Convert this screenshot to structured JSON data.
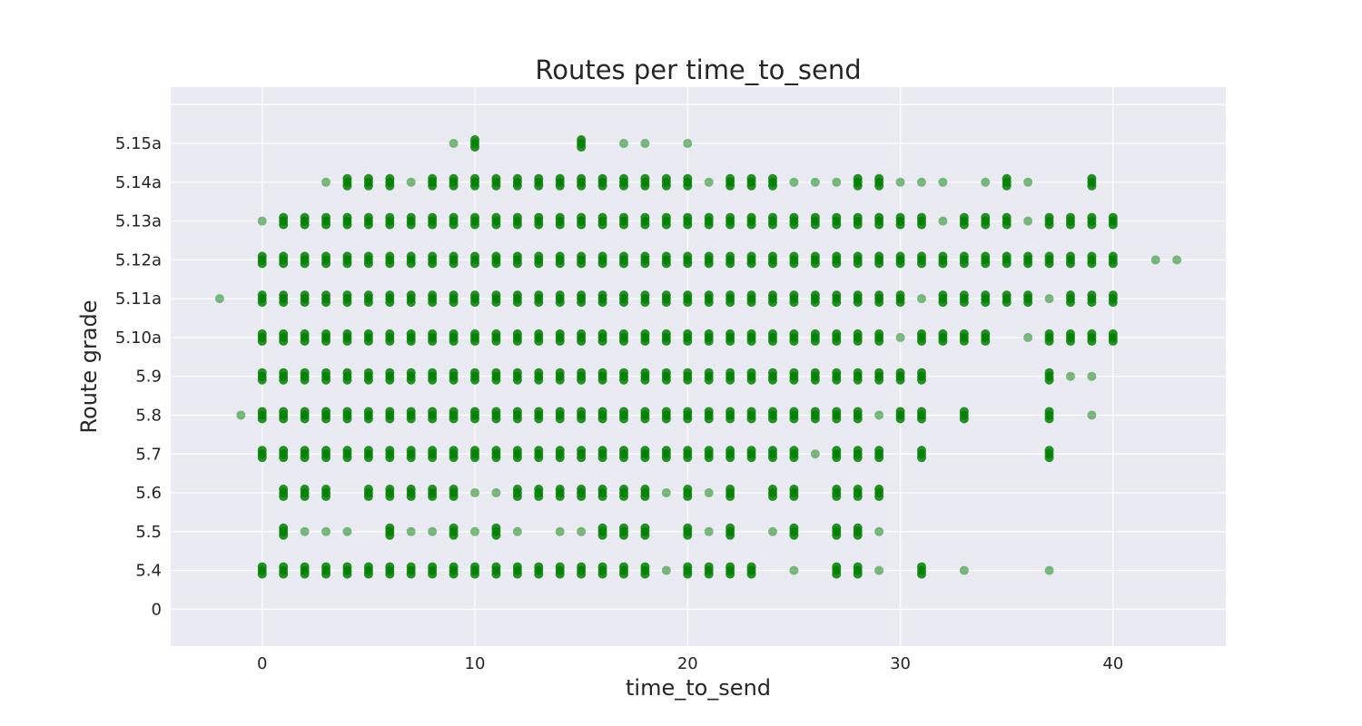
{
  "chart_data": {
    "type": "scatter",
    "title": "Routes per time_to_send",
    "xlabel": "time_to_send",
    "ylabel": "Route grade",
    "xlim": [
      -4.3,
      45.3
    ],
    "x_ticks": [
      0,
      10,
      20,
      30,
      40
    ],
    "y_ticks": [
      "0",
      "5.4",
      "5.5",
      "5.6",
      "5.7",
      "5.8",
      "5.9",
      "5.10a",
      "5.11a",
      "5.12a",
      "5.13a",
      "5.14a",
      "5.15a"
    ],
    "ylim_index": [
      -0.95,
      13.45
    ],
    "grid": true,
    "marker_color": "#008000",
    "background_color": "#eaeaf2",
    "grade_rows": [
      {
        "label": "5.4",
        "x": [
          0,
          1,
          2,
          3,
          4,
          5,
          6,
          7,
          8,
          9,
          10,
          11,
          12,
          13,
          14,
          15,
          16,
          17,
          18,
          19,
          20,
          21,
          22,
          23,
          25,
          27,
          28,
          29,
          31,
          33,
          37
        ],
        "faint_x": [
          19,
          25,
          29,
          33,
          37
        ]
      },
      {
        "label": "5.5",
        "x": [
          1,
          2,
          3,
          4,
          6,
          7,
          8,
          9,
          10,
          11,
          12,
          14,
          15,
          16,
          17,
          18,
          20,
          21,
          22,
          24,
          25,
          27,
          28,
          29
        ],
        "faint_x": [
          2,
          3,
          4,
          7,
          8,
          10,
          12,
          14,
          15,
          21,
          24,
          29
        ]
      },
      {
        "label": "5.6",
        "x": [
          1,
          2,
          3,
          5,
          6,
          7,
          8,
          9,
          10,
          11,
          12,
          13,
          14,
          15,
          16,
          17,
          18,
          19,
          20,
          21,
          22,
          24,
          25,
          27,
          28,
          29
        ],
        "faint_x": [
          10,
          11,
          19,
          21
        ]
      },
      {
        "label": "5.7",
        "x": [
          0,
          1,
          2,
          3,
          4,
          5,
          6,
          7,
          8,
          9,
          10,
          11,
          12,
          13,
          14,
          15,
          16,
          17,
          18,
          19,
          20,
          21,
          22,
          23,
          24,
          25,
          26,
          27,
          28,
          29,
          31,
          37
        ],
        "faint_x": [
          26
        ]
      },
      {
        "label": "5.8",
        "x": [
          -1,
          0,
          1,
          2,
          3,
          4,
          5,
          6,
          7,
          8,
          9,
          10,
          11,
          12,
          13,
          14,
          15,
          16,
          17,
          18,
          19,
          20,
          21,
          22,
          23,
          24,
          25,
          26,
          27,
          28,
          29,
          30,
          31,
          33,
          37,
          39
        ],
        "faint_x": [
          -1,
          29,
          39
        ]
      },
      {
        "label": "5.9",
        "x": [
          0,
          1,
          2,
          3,
          4,
          5,
          6,
          7,
          8,
          9,
          10,
          11,
          12,
          13,
          14,
          15,
          16,
          17,
          18,
          19,
          20,
          21,
          22,
          23,
          24,
          25,
          26,
          27,
          28,
          29,
          30,
          31,
          37,
          38,
          39
        ],
        "faint_x": [
          38,
          39
        ]
      },
      {
        "label": "5.10a",
        "x": [
          0,
          1,
          2,
          3,
          4,
          5,
          6,
          7,
          8,
          9,
          10,
          11,
          12,
          13,
          14,
          15,
          16,
          17,
          18,
          19,
          20,
          21,
          22,
          23,
          24,
          25,
          26,
          27,
          28,
          29,
          30,
          31,
          32,
          33,
          34,
          36,
          37,
          38,
          39,
          40
        ],
        "faint_x": [
          30,
          36
        ]
      },
      {
        "label": "5.11a",
        "x": [
          -2,
          0,
          1,
          2,
          3,
          4,
          5,
          6,
          7,
          8,
          9,
          10,
          11,
          12,
          13,
          14,
          15,
          16,
          17,
          18,
          19,
          20,
          21,
          22,
          23,
          24,
          25,
          26,
          27,
          28,
          29,
          30,
          31,
          32,
          33,
          34,
          35,
          36,
          37,
          38,
          39,
          40
        ],
        "faint_x": [
          -2,
          31,
          37
        ]
      },
      {
        "label": "5.12a",
        "x": [
          0,
          1,
          2,
          3,
          4,
          5,
          6,
          7,
          8,
          9,
          10,
          11,
          12,
          13,
          14,
          15,
          16,
          17,
          18,
          19,
          20,
          21,
          22,
          23,
          24,
          25,
          26,
          27,
          28,
          29,
          30,
          31,
          32,
          33,
          34,
          35,
          36,
          37,
          38,
          39,
          40,
          42,
          43
        ],
        "faint_x": [
          42,
          43
        ]
      },
      {
        "label": "5.13a",
        "x": [
          0,
          1,
          2,
          3,
          4,
          5,
          6,
          7,
          8,
          9,
          10,
          11,
          12,
          13,
          14,
          15,
          16,
          17,
          18,
          19,
          20,
          21,
          22,
          23,
          24,
          25,
          26,
          27,
          28,
          29,
          30,
          31,
          32,
          33,
          34,
          35,
          36,
          37,
          38,
          39,
          40
        ],
        "faint_x": [
          0,
          32,
          36
        ]
      },
      {
        "label": "5.14a",
        "x": [
          3,
          4,
          5,
          6,
          7,
          8,
          9,
          10,
          11,
          12,
          13,
          14,
          15,
          16,
          17,
          18,
          19,
          20,
          21,
          22,
          23,
          24,
          25,
          26,
          27,
          28,
          29,
          30,
          31,
          32,
          34,
          35,
          36,
          39
        ],
        "faint_x": [
          3,
          7,
          21,
          25,
          26,
          27,
          30,
          31,
          32,
          34,
          36
        ]
      },
      {
        "label": "5.15a",
        "x": [
          9,
          10,
          15,
          17,
          18,
          20
        ],
        "faint_x": [
          9,
          17,
          18,
          20
        ]
      }
    ]
  }
}
